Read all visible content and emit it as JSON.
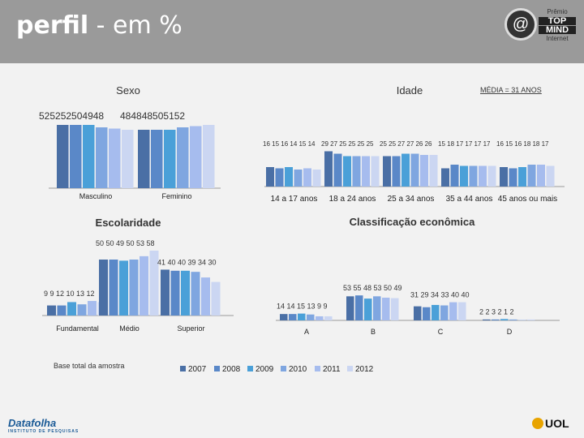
{
  "page": {
    "title_bold": "perfil",
    "title_rest": " - em %",
    "media_note": "MÉDIA = 31 ANOS",
    "base_note": "Base total da amostra",
    "logo_line1": "Prêmio",
    "logo_line2": "TOP",
    "logo_line3": "MIND",
    "logo_line4": "Internet",
    "footer_left": "Datafolha",
    "footer_left_sub": "INSTITUTO DE PESQUISAS",
    "footer_right": "UOL"
  },
  "colors": {
    "2007": "#4a6fa5",
    "2008": "#5a88c8",
    "2009": "#4aa0d8",
    "2010": "#7fa6e0",
    "2011": "#a6bcee",
    "2012": "#cbd6f2"
  },
  "chart_data": {
    "type": "bar",
    "legend": [
      "2007",
      "2008",
      "2009",
      "2010",
      "2011",
      "2012"
    ],
    "panels": [
      {
        "title": "Sexo",
        "categories": [
          "Masculino",
          "Feminino"
        ],
        "values": [
          [
            52,
            52,
            52,
            50,
            49,
            48
          ],
          [
            48,
            48,
            48,
            50,
            51,
            52
          ]
        ],
        "label_text": [
          "525252504948",
          "484848505152"
        ]
      },
      {
        "title": "Idade",
        "categories": [
          "14 a 17 anos",
          "18 a 24 anos",
          "25 a 34 anos",
          "35 a 44 anos",
          "45 anos ou mais"
        ],
        "values": [
          [
            16,
            15,
            16,
            14,
            15,
            14
          ],
          [
            29,
            27,
            25,
            25,
            25,
            25
          ],
          [
            25,
            25,
            27,
            27,
            26,
            26
          ],
          [
            15,
            18,
            17,
            17,
            17,
            17
          ],
          [
            16,
            15,
            16,
            18,
            18,
            17
          ]
        ],
        "label_text": [
          "16 15 16 14 15 14",
          "29 27 25 25 25 25",
          "25 25 27 27 26 26",
          "15 18 17 17 17 17",
          "16 15 16 18 18 17"
        ]
      },
      {
        "title": "Escolaridade",
        "categories": [
          "Fundamental",
          "Médio",
          "Superior"
        ],
        "values": [
          [
            9,
            9,
            12,
            10,
            13,
            12
          ],
          [
            50,
            50,
            49,
            50,
            53,
            58
          ],
          [
            41,
            40,
            40,
            39,
            34,
            30
          ]
        ],
        "label_text": [
          "9  9 12 10 13 12",
          "50 50 49 50 53 58",
          "41 40 40 39 34 30"
        ]
      },
      {
        "title": "Classificação econômica",
        "categories": [
          "A",
          "B",
          "C",
          "D"
        ],
        "values": [
          [
            14,
            14,
            15,
            13,
            9,
            9
          ],
          [
            53,
            55,
            48,
            53,
            50,
            49
          ],
          [
            31,
            29,
            34,
            33,
            40,
            40
          ],
          [
            2,
            2,
            3,
            2,
            1,
            2
          ]
        ],
        "label_text": [
          "14 14 15 13 9 9",
          "53 55 48 53 50 49",
          "31 29 34 33 40 40",
          "2 2 3 2 1 2"
        ]
      }
    ]
  }
}
